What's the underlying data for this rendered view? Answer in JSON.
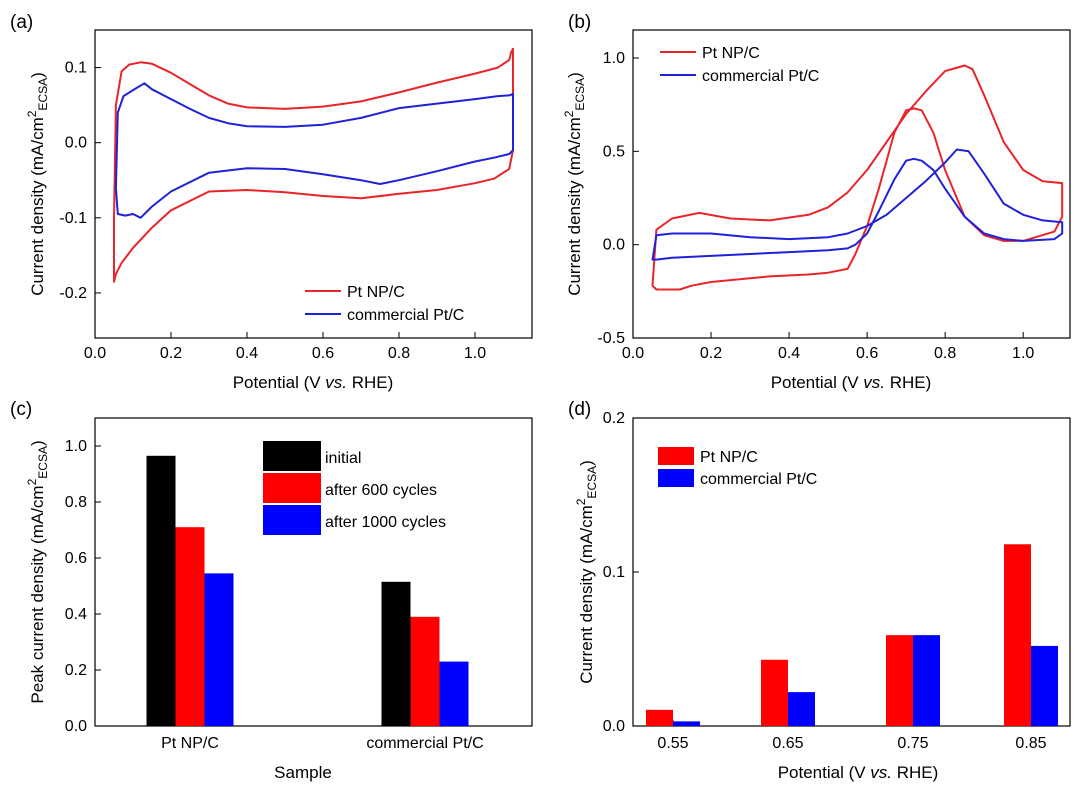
{
  "colors": {
    "red": "#e8252a",
    "blue": "#2121d8",
    "axis": "#000000",
    "bar_black": "#000000",
    "bar_red": "#ff0000",
    "bar_blue": "#0000ff"
  },
  "chart_data": [
    {
      "panel": "(a)",
      "type": "line",
      "xlabel": "Potential (V vs. RHE)",
      "ylabel": "Current density (mA/cm2 ECSA)",
      "xlim": [
        0.0,
        1.15
      ],
      "ylim": [
        -0.26,
        0.15
      ],
      "xticks": [
        "0.0",
        "0.2",
        "0.4",
        "0.6",
        "0.8",
        "1.0"
      ],
      "yticks": [
        "-0.2",
        "-0.1",
        "0.0",
        "0.1"
      ],
      "legend": [
        "Pt NP/C",
        "commercial Pt/C"
      ],
      "series": [
        {
          "name": "Pt NP/C",
          "color": "red",
          "x": [
            0.05,
            0.055,
            0.07,
            0.09,
            0.12,
            0.15,
            0.2,
            0.25,
            0.3,
            0.35,
            0.4,
            0.5,
            0.6,
            0.7,
            0.8,
            0.9,
            1.0,
            1.06,
            1.09,
            1.095,
            1.1,
            1.1,
            1.09,
            1.05,
            1.0,
            0.9,
            0.8,
            0.7,
            0.6,
            0.5,
            0.4,
            0.3,
            0.2,
            0.15,
            0.1,
            0.07,
            0.055,
            0.05
          ],
          "y": [
            -0.1,
            0.05,
            0.095,
            0.104,
            0.107,
            0.105,
            0.093,
            0.078,
            0.063,
            0.052,
            0.047,
            0.045,
            0.048,
            0.055,
            0.067,
            0.08,
            0.092,
            0.1,
            0.11,
            0.12,
            0.125,
            -0.01,
            -0.035,
            -0.048,
            -0.054,
            -0.063,
            -0.068,
            -0.074,
            -0.071,
            -0.066,
            -0.063,
            -0.065,
            -0.09,
            -0.113,
            -0.14,
            -0.16,
            -0.175,
            -0.185
          ]
        },
        {
          "name": "commercial Pt/C",
          "color": "blue",
          "x": [
            0.055,
            0.06,
            0.075,
            0.1,
            0.13,
            0.15,
            0.2,
            0.25,
            0.3,
            0.35,
            0.4,
            0.5,
            0.6,
            0.7,
            0.8,
            0.9,
            1.0,
            1.06,
            1.09,
            1.1,
            1.1,
            1.09,
            1.05,
            1.0,
            0.9,
            0.8,
            0.75,
            0.7,
            0.6,
            0.5,
            0.4,
            0.3,
            0.2,
            0.15,
            0.12,
            0.1,
            0.08,
            0.06
          ],
          "y": [
            -0.06,
            0.04,
            0.062,
            0.07,
            0.079,
            0.071,
            0.058,
            0.045,
            0.033,
            0.026,
            0.022,
            0.021,
            0.024,
            0.033,
            0.046,
            0.052,
            0.058,
            0.062,
            0.063,
            0.065,
            -0.01,
            -0.015,
            -0.02,
            -0.025,
            -0.038,
            -0.05,
            -0.055,
            -0.05,
            -0.042,
            -0.035,
            -0.034,
            -0.04,
            -0.065,
            -0.085,
            -0.1,
            -0.095,
            -0.097,
            -0.095
          ]
        }
      ]
    },
    {
      "panel": "(b)",
      "type": "line",
      "xlabel": "Potential (V vs. RHE)",
      "ylabel": "Current density (mA/cm2 ECSA)",
      "xlim": [
        0.0,
        1.12
      ],
      "ylim": [
        -0.5,
        1.15
      ],
      "xticks": [
        "0.0",
        "0.2",
        "0.4",
        "0.6",
        "0.8",
        "1.0"
      ],
      "yticks": [
        "-0.5",
        "0.0",
        "0.5",
        "1.0"
      ],
      "legend": [
        "Pt NP/C",
        "commercial Pt/C"
      ],
      "series": [
        {
          "name": "Pt NP/C",
          "color": "red",
          "x": [
            0.05,
            0.06,
            0.1,
            0.17,
            0.25,
            0.35,
            0.45,
            0.5,
            0.55,
            0.6,
            0.65,
            0.7,
            0.75,
            0.8,
            0.85,
            0.87,
            0.9,
            0.95,
            1.0,
            1.05,
            1.1,
            1.1,
            1.08,
            1.0,
            0.95,
            0.9,
            0.85,
            0.8,
            0.77,
            0.74,
            0.72,
            0.7,
            0.67,
            0.63,
            0.6,
            0.57,
            0.55,
            0.5,
            0.45,
            0.35,
            0.25,
            0.2,
            0.15,
            0.12,
            0.1,
            0.06,
            0.05
          ],
          "y": [
            -0.22,
            0.08,
            0.14,
            0.17,
            0.14,
            0.13,
            0.16,
            0.2,
            0.28,
            0.4,
            0.55,
            0.7,
            0.82,
            0.93,
            0.96,
            0.94,
            0.8,
            0.55,
            0.4,
            0.34,
            0.33,
            0.15,
            0.07,
            0.02,
            0.02,
            0.05,
            0.15,
            0.4,
            0.6,
            0.72,
            0.73,
            0.72,
            0.6,
            0.3,
            0.1,
            -0.05,
            -0.13,
            -0.15,
            -0.16,
            -0.17,
            -0.19,
            -0.2,
            -0.22,
            -0.24,
            -0.24,
            -0.24,
            -0.22
          ]
        },
        {
          "name": "commercial Pt/C",
          "color": "blue",
          "x": [
            0.05,
            0.06,
            0.1,
            0.2,
            0.3,
            0.4,
            0.5,
            0.55,
            0.6,
            0.65,
            0.7,
            0.75,
            0.8,
            0.83,
            0.86,
            0.9,
            0.95,
            1.0,
            1.05,
            1.1,
            1.1,
            1.08,
            1.0,
            0.95,
            0.9,
            0.85,
            0.8,
            0.77,
            0.74,
            0.72,
            0.7,
            0.67,
            0.63,
            0.6,
            0.57,
            0.55,
            0.5,
            0.4,
            0.3,
            0.2,
            0.1,
            0.06,
            0.05
          ],
          "y": [
            -0.08,
            0.05,
            0.06,
            0.06,
            0.04,
            0.03,
            0.04,
            0.06,
            0.1,
            0.16,
            0.25,
            0.34,
            0.44,
            0.51,
            0.5,
            0.38,
            0.22,
            0.16,
            0.13,
            0.12,
            0.06,
            0.03,
            0.02,
            0.03,
            0.06,
            0.15,
            0.3,
            0.4,
            0.45,
            0.46,
            0.45,
            0.35,
            0.18,
            0.06,
            0.0,
            -0.02,
            -0.03,
            -0.04,
            -0.05,
            -0.06,
            -0.07,
            -0.08,
            -0.08
          ]
        }
      ]
    },
    {
      "panel": "(c)",
      "type": "bar",
      "xlabel": "Sample",
      "ylabel": "Peak current density (mA/cm2 ECSA)",
      "ylim": [
        0.0,
        1.1
      ],
      "yticks": [
        "0.0",
        "0.2",
        "0.4",
        "0.6",
        "0.8",
        "1.0"
      ],
      "categories": [
        "Pt NP/C",
        "commercial Pt/C"
      ],
      "series": [
        {
          "name": "initial",
          "color": "bar_black",
          "values": [
            0.965,
            0.515
          ]
        },
        {
          "name": "after 600 cycles",
          "color": "bar_red",
          "values": [
            0.71,
            0.39
          ]
        },
        {
          "name": "after 1000 cycles",
          "color": "bar_blue",
          "values": [
            0.545,
            0.23
          ]
        }
      ]
    },
    {
      "panel": "(d)",
      "type": "bar",
      "xlabel": "Potential (V vs. RHE)",
      "ylabel": "Current density (mA/cm2 ECSA)",
      "ylim": [
        0.0,
        0.2
      ],
      "yticks": [
        "0.0",
        "0.1",
        "0.2"
      ],
      "categories": [
        "0.55",
        "0.65",
        "0.75",
        "0.85"
      ],
      "series": [
        {
          "name": "Pt NP/C",
          "color": "bar_red",
          "values": [
            0.0105,
            0.043,
            0.059,
            0.118
          ]
        },
        {
          "name": "commercial Pt/C",
          "color": "bar_blue",
          "values": [
            0.003,
            0.022,
            0.059,
            0.052
          ]
        }
      ]
    }
  ],
  "text": {
    "label_a": "(a)",
    "label_b": "(b)",
    "label_c": "(c)",
    "label_d": "(d)",
    "potential_prefix": "Potential (V ",
    "vs": "vs.",
    "potential_suffix": " RHE)",
    "ylabel_cd_main": "Current density (mA/cm",
    "ylabel_peak_main": "Peak current density (mA/cm",
    "sup2": "2",
    "sub_ecsa": "ECSA",
    "close_paren": ")",
    "sample": "Sample"
  }
}
